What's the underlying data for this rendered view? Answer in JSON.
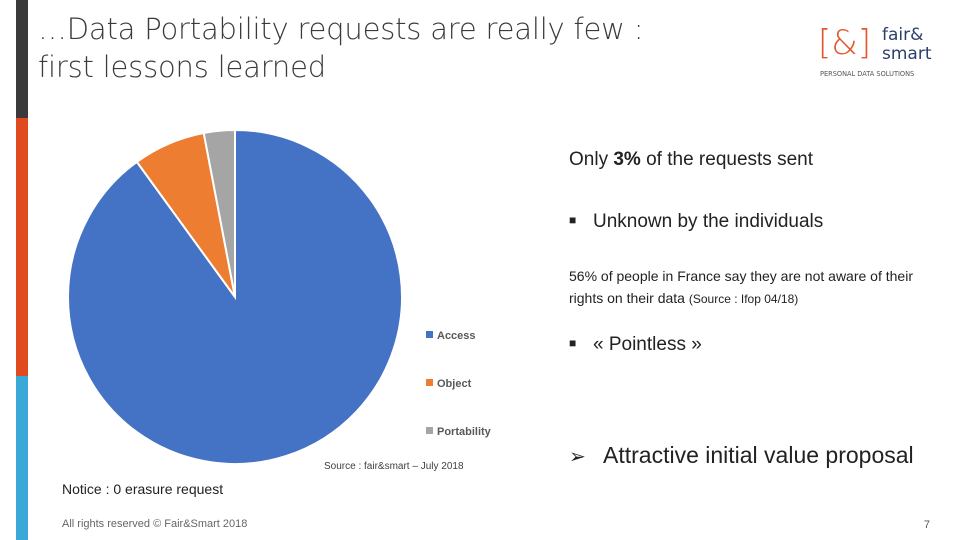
{
  "slide": {
    "title_line1": "…Data Portability requests are really few :",
    "title_line2": "first lessons learned",
    "page_number": "7",
    "copyright": "All rights reserved © Fair&Smart 2018"
  },
  "logo": {
    "mark_text": "[&]",
    "word1": "fair&",
    "word2": "smart",
    "tagline": "PERSONAL DATA SOLUTIONS",
    "bracket_color": "#e4572e",
    "text_color": "#2c3e6b"
  },
  "sidebar_colors": [
    "#3a3a3a",
    "#e04a1f",
    "#3aa9d8"
  ],
  "chart_data": {
    "type": "pie",
    "categories": [
      "Access",
      "Object",
      "Portability"
    ],
    "values": [
      90,
      7,
      3
    ],
    "colors": [
      "#4472c4",
      "#ed7d31",
      "#a5a5a5"
    ],
    "legend_position": "right",
    "source": "Source : fair&smart – July 2018"
  },
  "right_panel": {
    "line1_pre": "Only ",
    "line1_bold": "3%",
    "line1_post": " of the requests sent",
    "bullet1": "Unknown by the individuals",
    "detail": "56% of people in France say they are not aware of their rights on their data",
    "detail_source": "(Source : Ifop 04/18)",
    "bullet2": "« Pointless »",
    "arrow_line": "Attractive initial value proposal",
    "bullet_glyph": "■",
    "arrow_glyph": "➢"
  },
  "notice": "Notice : 0 erasure request"
}
